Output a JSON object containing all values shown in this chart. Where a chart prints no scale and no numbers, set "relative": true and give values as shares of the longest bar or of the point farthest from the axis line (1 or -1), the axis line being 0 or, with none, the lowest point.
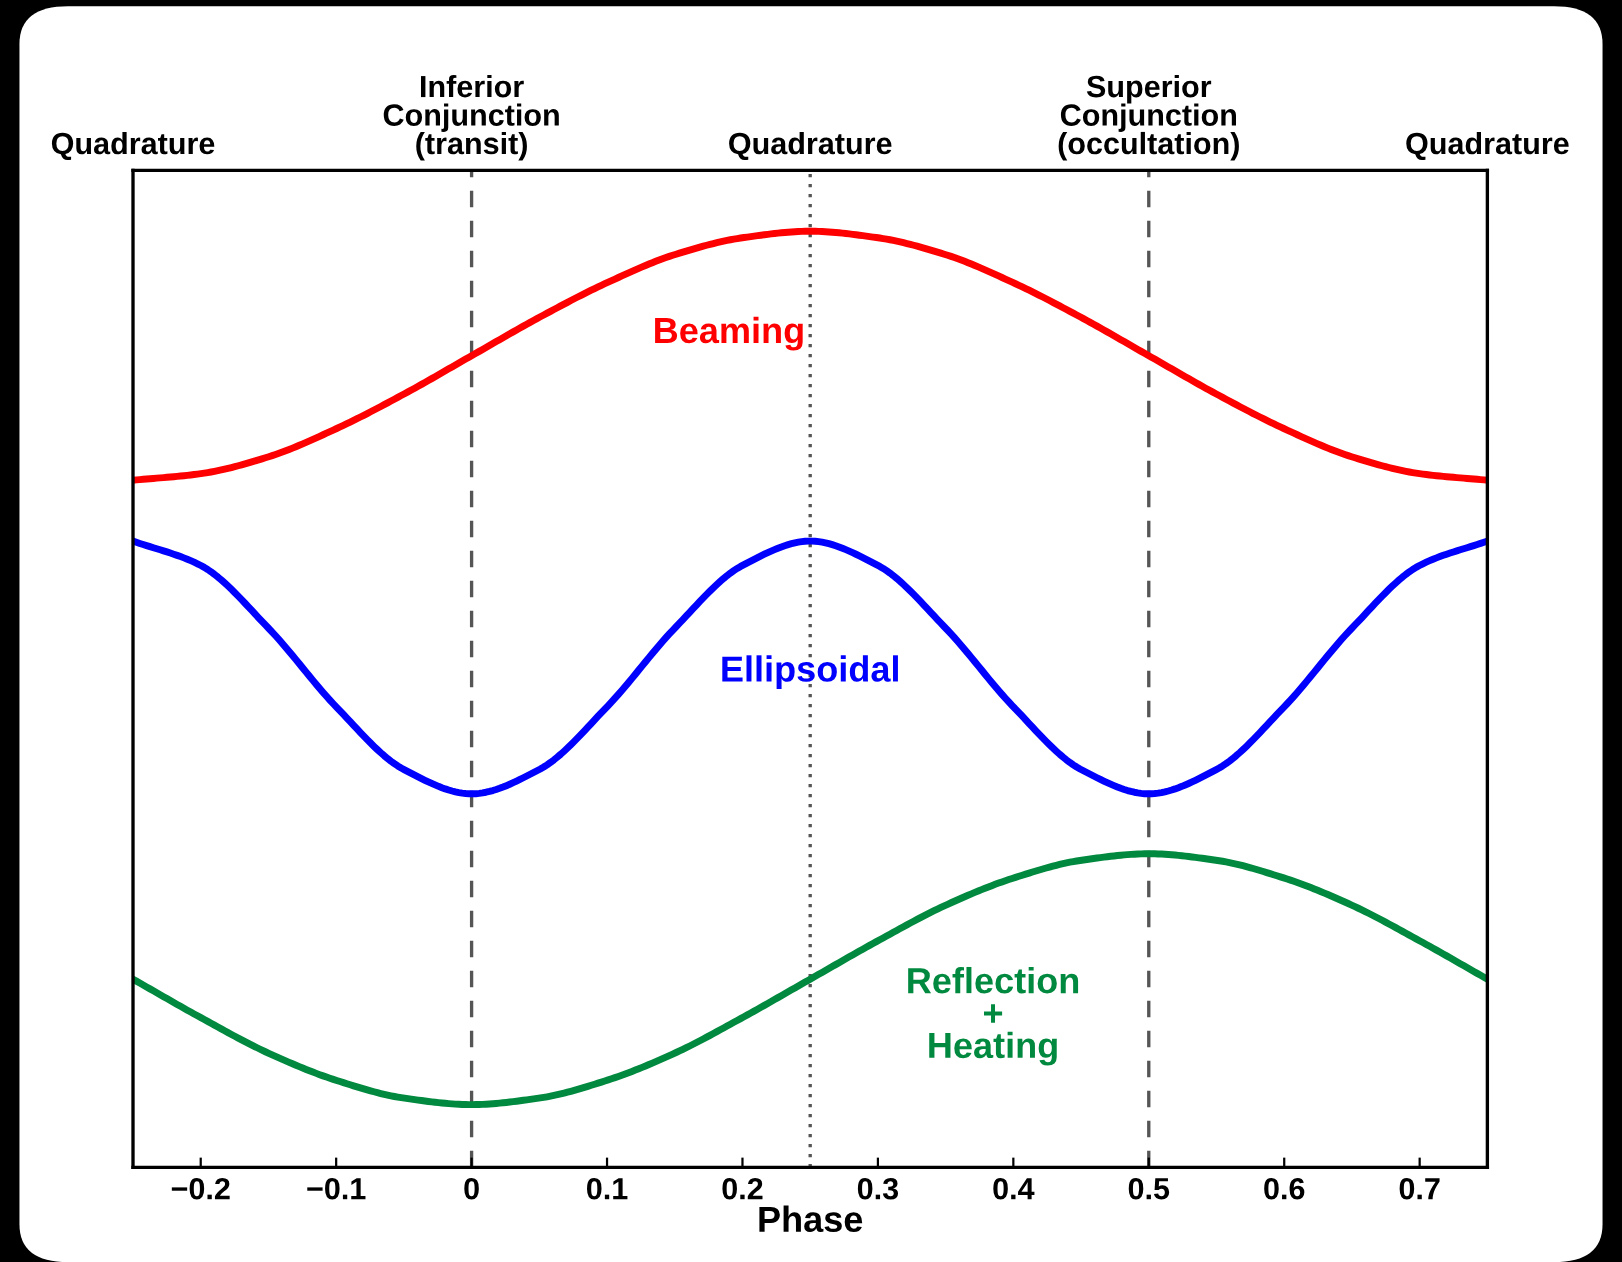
{
  "chart_data": {
    "type": "line",
    "relative": true,
    "xlabel": "Phase",
    "x": [
      -0.25,
      -0.2,
      -0.15,
      -0.1,
      -0.05,
      0,
      0.05,
      0.1,
      0.15,
      0.2,
      0.25,
      0.3,
      0.35,
      0.4,
      0.45,
      0.5,
      0.55,
      0.6,
      0.65,
      0.7,
      0.75
    ],
    "xlim": [
      -0.25,
      0.75
    ],
    "xticks": [
      {
        "value": -0.2,
        "label": "−0.2"
      },
      {
        "value": -0.1,
        "label": "−0.1"
      },
      0,
      0.1,
      0.2,
      0.3,
      0.4,
      0.5,
      0.6,
      0.7
    ],
    "annotations": [
      "Quadrature",
      "Quadrature"
    ],
    "series": [
      {
        "name": "Beaming",
        "color": "#ff0000",
        "values": [
          0.734,
          0.741,
          0.759,
          0.789,
          0.826,
          0.867,
          0.908,
          0.945,
          0.975,
          0.993,
          1.0,
          0.993,
          0.975,
          0.945,
          0.908,
          0.867,
          0.826,
          0.789,
          0.759,
          0.741,
          0.734
        ]
      },
      {
        "name": "Ellipsoidal",
        "color": "#0000ff",
        "values": [
          0.669,
          0.643,
          0.576,
          0.492,
          0.425,
          0.399,
          0.425,
          0.492,
          0.576,
          0.643,
          0.669,
          0.643,
          0.576,
          0.492,
          0.425,
          0.399,
          0.425,
          0.492,
          0.576,
          0.643,
          0.669
        ]
      },
      {
        "name": "Reflection\n+\nHeating",
        "color": "#00893f",
        "values": [
          0.201,
          0.16,
          0.122,
          0.093,
          0.074,
          0.067,
          0.074,
          0.093,
          0.122,
          0.16,
          0.201,
          0.242,
          0.28,
          0.309,
          0.328,
          0.335,
          0.328,
          0.309,
          0.28,
          0.242,
          0.201
        ]
      }
    ],
    "ref_lines": [
      {
        "axis": "x",
        "value": 0,
        "label": "Inferior\nConjunction\n(transit)",
        "color": "#555555",
        "line_style": "dashed"
      },
      {
        "axis": "x",
        "value": 0.25,
        "label": "Quadrature",
        "color": "#555555",
        "line_style": "dotted"
      },
      {
        "axis": "x",
        "value": 0.5,
        "label": "Superior\nConjunction\n(occultation)",
        "color": "#555555",
        "line_style": "dashed"
      }
    ],
    "grid": false,
    "legend": false,
    "line_style": "solid",
    "marker": "none"
  }
}
